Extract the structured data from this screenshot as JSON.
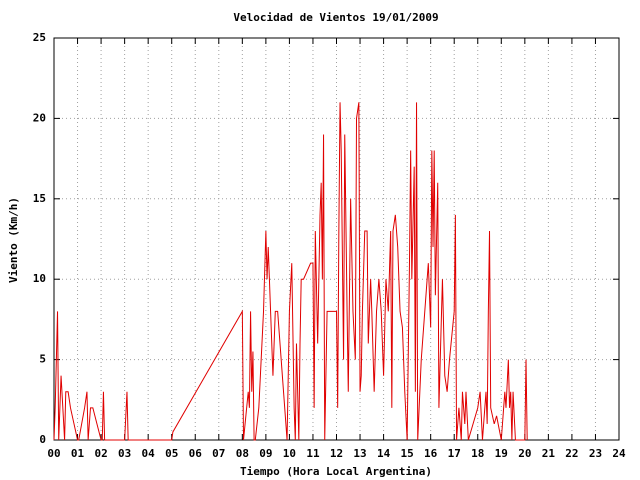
{
  "chart_data": {
    "type": "line",
    "title": "Velocidad de Vientos 19/01/2009",
    "xlabel": "Tiempo (Hora Local Argentina)",
    "ylabel": "Viento (Km/h)",
    "color": "#e00000",
    "grid": true,
    "xlim": [
      0,
      24
    ],
    "ylim": [
      0,
      25
    ],
    "yticks": [
      0,
      5,
      10,
      15,
      20,
      25
    ],
    "xticks": [
      {
        "value": 0,
        "label": "00"
      },
      {
        "value": 1,
        "label": "01"
      },
      {
        "value": 2,
        "label": "02"
      },
      {
        "value": 3,
        "label": "03"
      },
      {
        "value": 4,
        "label": "04"
      },
      {
        "value": 5,
        "label": "05"
      },
      {
        "value": 6,
        "label": "06"
      },
      {
        "value": 7,
        "label": "07"
      },
      {
        "value": 8,
        "label": "08"
      },
      {
        "value": 9,
        "label": "09"
      },
      {
        "value": 10,
        "label": "10"
      },
      {
        "value": 11,
        "label": "11"
      },
      {
        "value": 12,
        "label": "12"
      },
      {
        "value": 13,
        "label": "13"
      },
      {
        "value": 14,
        "label": "14"
      },
      {
        "value": 15,
        "label": "15"
      },
      {
        "value": 16,
        "label": "16"
      },
      {
        "value": 17,
        "label": "17"
      },
      {
        "value": 18,
        "label": "18"
      },
      {
        "value": 19,
        "label": "19"
      },
      {
        "value": 20,
        "label": "20"
      },
      {
        "value": 21,
        "label": "21"
      },
      {
        "value": 22,
        "label": "22"
      },
      {
        "value": 23,
        "label": "23"
      },
      {
        "value": 24,
        "label": "24"
      }
    ],
    "x": [
      0.0,
      0.05,
      0.15,
      0.2,
      0.25,
      0.3,
      0.45,
      0.5,
      0.6,
      0.7,
      1.0,
      1.05,
      1.3,
      1.4,
      1.45,
      1.55,
      1.65,
      2.0,
      2.05,
      2.1,
      2.15,
      3.0,
      3.1,
      3.15,
      5.0,
      5.05,
      8.0,
      8.05,
      8.25,
      8.3,
      8.35,
      8.4,
      8.45,
      8.5,
      8.55,
      8.7,
      8.9,
      9.0,
      9.05,
      9.1,
      9.2,
      9.3,
      9.4,
      9.5,
      9.6,
      9.8,
      9.9,
      10.0,
      10.1,
      10.2,
      10.25,
      10.3,
      10.4,
      10.45,
      10.5,
      10.6,
      10.9,
      11.0,
      11.05,
      11.1,
      11.2,
      11.3,
      11.35,
      11.4,
      11.45,
      11.5,
      11.6,
      12.0,
      12.05,
      12.1,
      12.15,
      12.2,
      12.3,
      12.35,
      12.45,
      12.5,
      12.6,
      12.7,
      12.8,
      12.85,
      12.95,
      13.0,
      13.05,
      13.1,
      13.2,
      13.3,
      13.35,
      13.45,
      13.5,
      13.6,
      13.7,
      13.8,
      13.9,
      14.0,
      14.1,
      14.2,
      14.3,
      14.35,
      14.4,
      14.5,
      14.6,
      14.7,
      14.8,
      14.9,
      15.0,
      15.1,
      15.15,
      15.2,
      15.3,
      15.35,
      15.4,
      15.45,
      15.6,
      15.8,
      15.9,
      16.0,
      16.05,
      16.1,
      16.15,
      16.2,
      16.3,
      16.35,
      16.5,
      16.6,
      16.7,
      16.8,
      17.0,
      17.05,
      17.1,
      17.2,
      17.3,
      17.35,
      17.45,
      17.5,
      17.6,
      18.0,
      18.1,
      18.2,
      18.35,
      18.4,
      18.45,
      18.5,
      18.55,
      18.7,
      18.8,
      19.0,
      19.1,
      19.15,
      19.2,
      19.3,
      19.35,
      19.4,
      19.45,
      19.5,
      19.6,
      20.0,
      20.05,
      20.1
    ],
    "values": [
      0,
      2,
      8,
      0,
      2,
      4,
      0,
      3,
      3,
      2,
      0,
      0,
      2,
      3,
      0,
      2,
      2,
      0,
      0,
      3,
      0,
      0,
      3,
      0,
      0,
      0.5,
      8,
      0,
      3,
      2,
      8,
      3,
      5.5,
      0,
      0,
      2,
      8,
      13,
      10,
      12,
      8,
      4,
      8,
      8,
      6,
      2,
      0,
      8,
      11,
      2,
      0,
      6,
      0,
      6,
      10,
      10,
      11,
      11,
      2,
      13,
      6,
      14,
      16,
      10,
      19,
      0,
      8,
      8,
      2,
      13,
      21,
      18,
      5,
      19,
      8,
      3,
      15,
      8,
      5,
      20,
      21,
      3,
      4,
      8,
      13,
      13,
      6,
      10,
      8,
      3,
      8,
      10,
      8,
      4,
      10,
      8,
      13,
      2,
      13,
      14,
      12,
      8,
      7,
      3,
      0,
      11,
      18,
      10,
      17,
      3,
      21,
      0,
      5,
      9,
      11,
      7,
      18,
      12,
      18,
      9,
      16,
      2,
      10,
      4,
      3,
      5,
      8,
      14,
      0,
      2,
      0,
      3,
      1,
      3,
      0,
      2,
      3,
      0,
      3,
      1,
      8,
      13,
      2,
      1,
      1.5,
      0,
      2,
      3,
      2,
      5,
      2,
      3,
      0,
      3,
      0,
      0,
      5,
      0
    ]
  }
}
